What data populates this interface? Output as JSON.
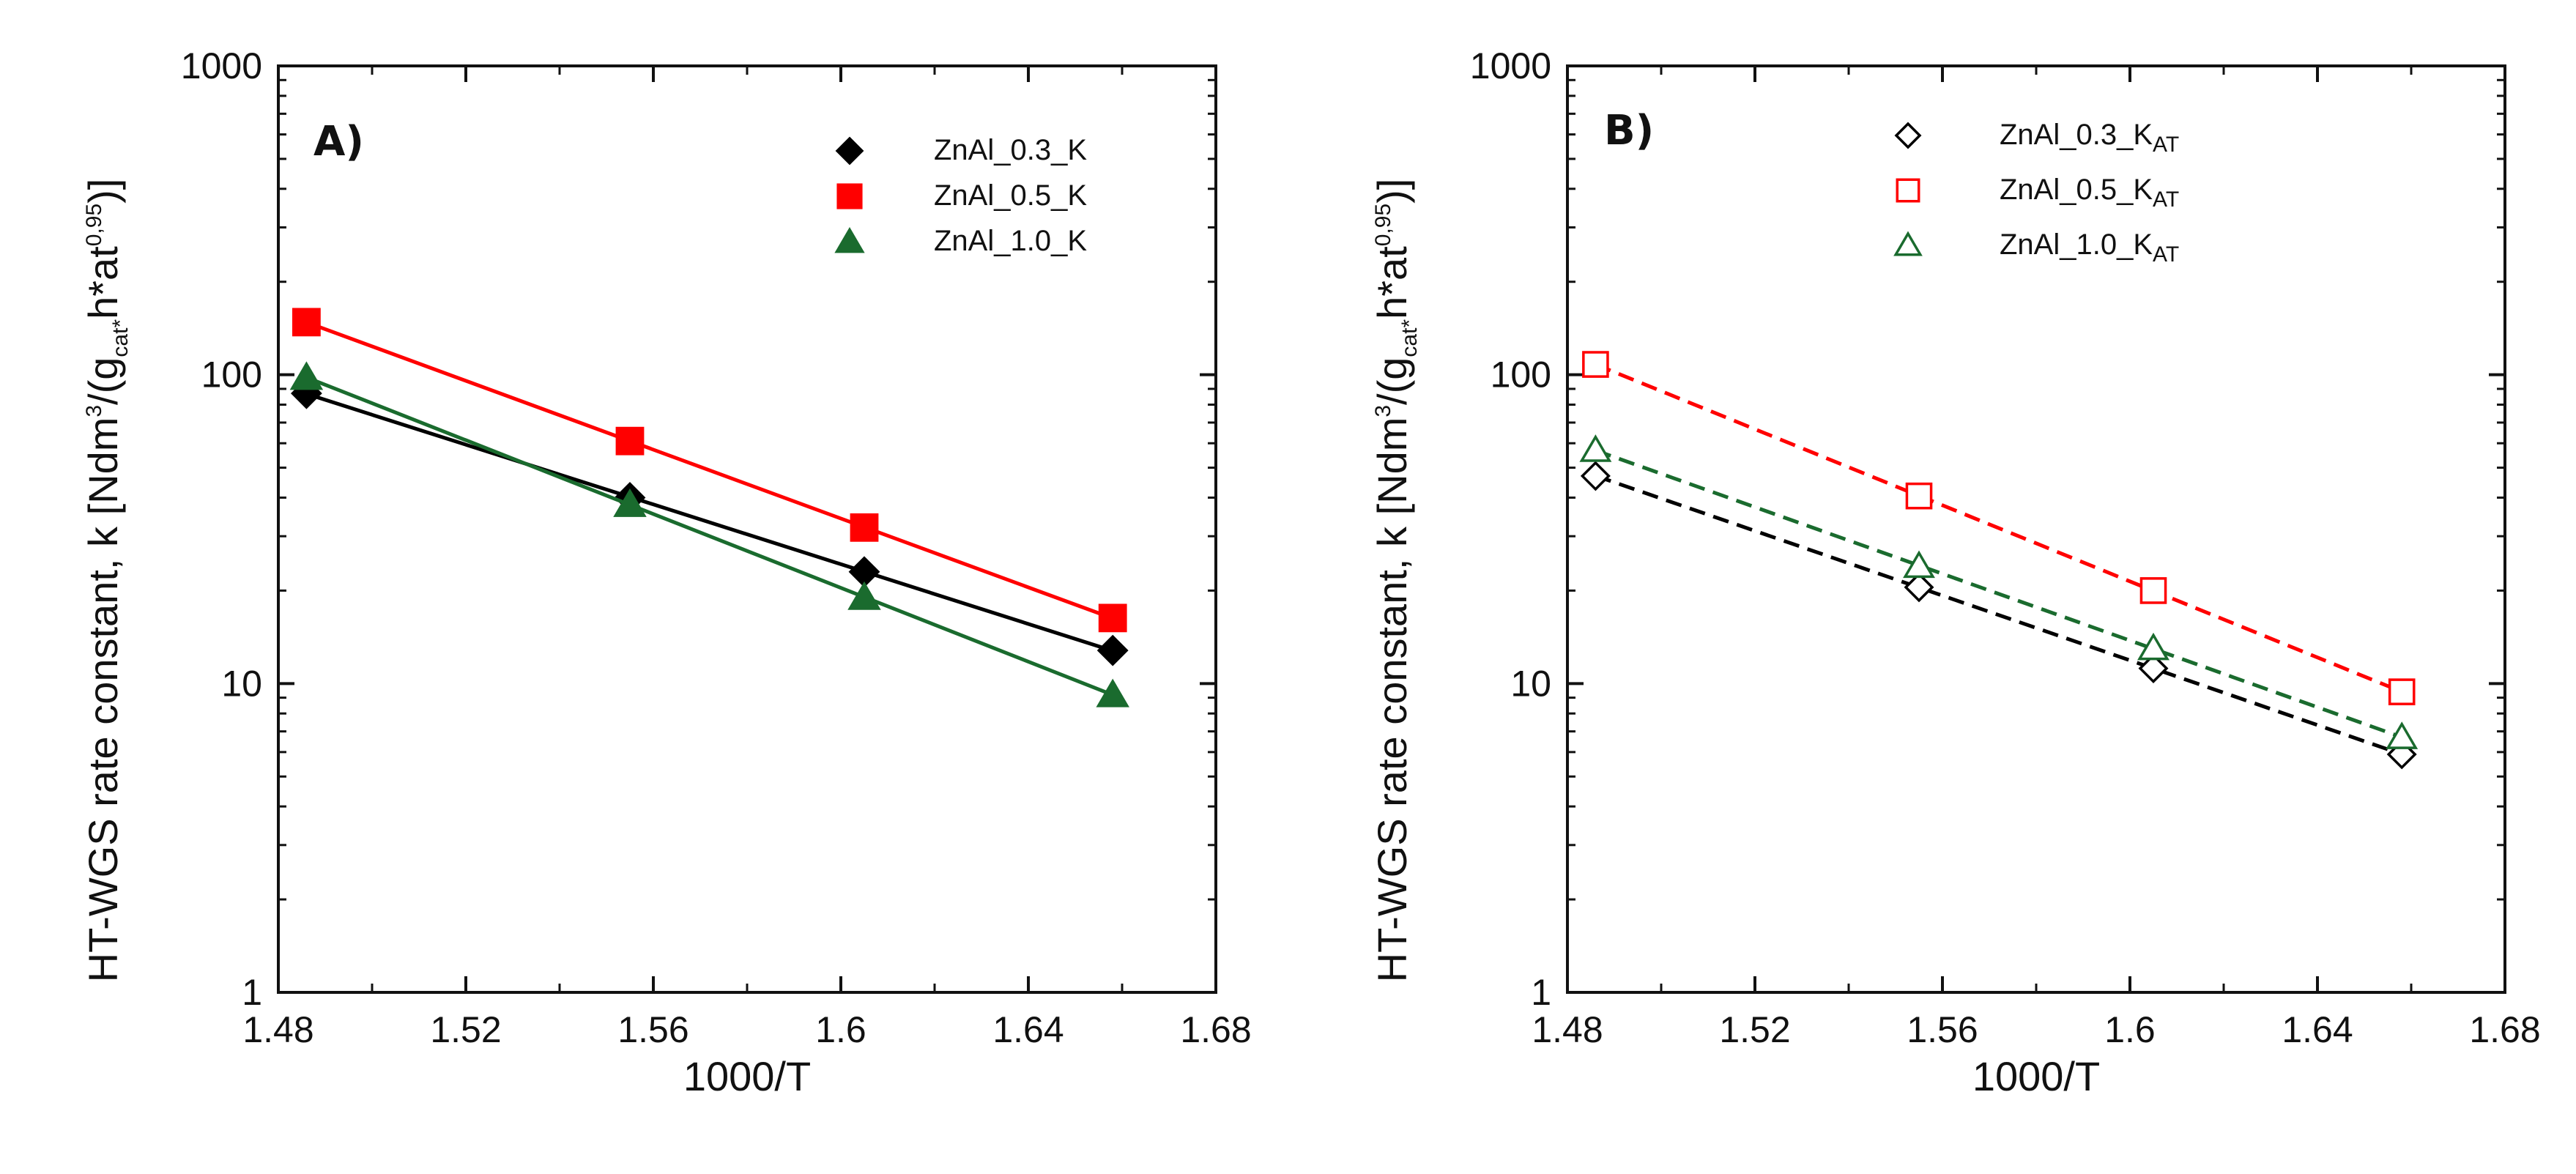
{
  "chart_data": [
    {
      "type": "scatter",
      "panel_label": "A)",
      "xlabel": "1000/T",
      "ylabel": {
        "prefix": "HT-WGS rate constant, k [Ndm",
        "sup1": "3",
        "mid1": "/(g",
        "sub1": "cat*",
        "mid2": "h*at",
        "sup2": "0,95",
        "suffix": ")]"
      },
      "xlim": [
        1.48,
        1.68
      ],
      "ylim": [
        1,
        1000
      ],
      "yscale": "log",
      "xticks": [
        "1.48",
        "1.52",
        "1.56",
        "1.6",
        "1.64",
        "1.68"
      ],
      "yticks": [
        "1",
        "10",
        "100",
        "1000"
      ],
      "grid": false,
      "legend_position": "top-right",
      "fit_lines": "solid",
      "series": [
        {
          "name": "ZnAl_0.3_K",
          "marker": "diamond-filled",
          "color": "#000000",
          "x": [
            1.486,
            1.555,
            1.605,
            1.658
          ],
          "y": [
            87,
            40,
            23,
            12.8
          ]
        },
        {
          "name": "ZnAl_0.5_K",
          "marker": "square-filled",
          "color": "#ff0000",
          "x": [
            1.486,
            1.555,
            1.605,
            1.658
          ],
          "y": [
            148,
            61,
            32,
            16.3
          ]
        },
        {
          "name": "ZnAl_1.0_K",
          "marker": "triangle-filled",
          "color": "#1a6b2e",
          "x": [
            1.486,
            1.555,
            1.605,
            1.658
          ],
          "y": [
            98,
            38,
            19,
            9.2
          ]
        }
      ]
    },
    {
      "type": "scatter",
      "panel_label": "B)",
      "xlabel": "1000/T",
      "ylabel": {
        "prefix": "HT-WGS rate constant, k [Ndm",
        "sup1": "3",
        "mid1": "/(g",
        "sub1": "cat*",
        "mid2": "h*at",
        "sup2": "0,95",
        "suffix": ")]"
      },
      "xlim": [
        1.48,
        1.68
      ],
      "ylim": [
        1,
        1000
      ],
      "yscale": "log",
      "xticks": [
        "1.48",
        "1.52",
        "1.56",
        "1.6",
        "1.64",
        "1.68"
      ],
      "yticks": [
        "1",
        "10",
        "100",
        "1000"
      ],
      "grid": false,
      "legend_position": "top-right",
      "fit_lines": "dashed",
      "series": [
        {
          "name": "ZnAl_0.3_K",
          "name_sub": "AT",
          "marker": "diamond-open",
          "color": "#000000",
          "x": [
            1.486,
            1.555,
            1.605,
            1.658
          ],
          "y": [
            47,
            20.5,
            11.2,
            5.9
          ]
        },
        {
          "name": "ZnAl_0.5_K",
          "name_sub": "AT",
          "marker": "square-open",
          "color": "#ff0000",
          "x": [
            1.486,
            1.555,
            1.605,
            1.658
          ],
          "y": [
            108,
            40.5,
            20,
            9.4
          ]
        },
        {
          "name": "ZnAl_1.0_K",
          "name_sub": "AT",
          "marker": "triangle-open",
          "color": "#1a6b2e",
          "x": [
            1.486,
            1.555,
            1.605,
            1.658
          ],
          "y": [
            57,
            24,
            13,
            6.7
          ]
        }
      ]
    }
  ]
}
